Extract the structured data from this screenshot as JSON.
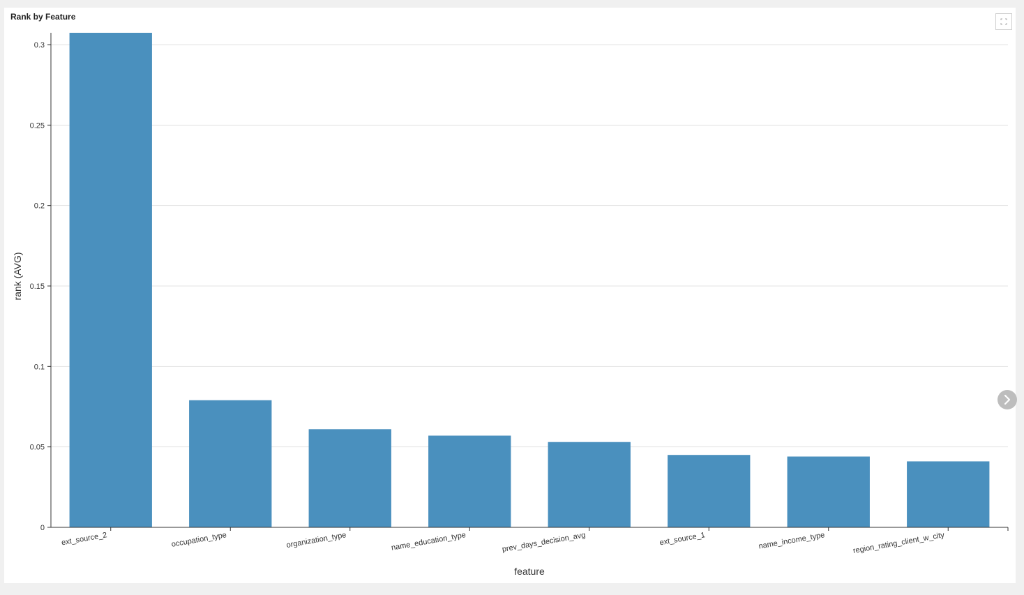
{
  "panel": {
    "title": "Rank by Feature",
    "expand_icon": "expand-icon",
    "next_icon": "chevron-right-icon"
  },
  "chart_data": {
    "type": "bar",
    "title": "Rank by Feature",
    "xlabel": "feature",
    "ylabel": "rank (AVG)",
    "ylim": [
      0,
      0.3
    ],
    "yticks": [
      0,
      0.05,
      0.1,
      0.15,
      0.2,
      0.25,
      0.3
    ],
    "ytick_labels": [
      "0",
      "0.05",
      "0.1",
      "0.15",
      "0.2",
      "0.25",
      "0.3"
    ],
    "grid": true,
    "bar_color": "#4a90be",
    "categories": [
      "ext_source_2",
      "occupation_type",
      "organization_type",
      "name_education_type",
      "prev_days_decision_avg",
      "ext_source_1",
      "name_income_type",
      "region_rating_client_w_city"
    ],
    "values": [
      0.308,
      0.079,
      0.061,
      0.057,
      0.053,
      0.045,
      0.044,
      0.041
    ]
  }
}
